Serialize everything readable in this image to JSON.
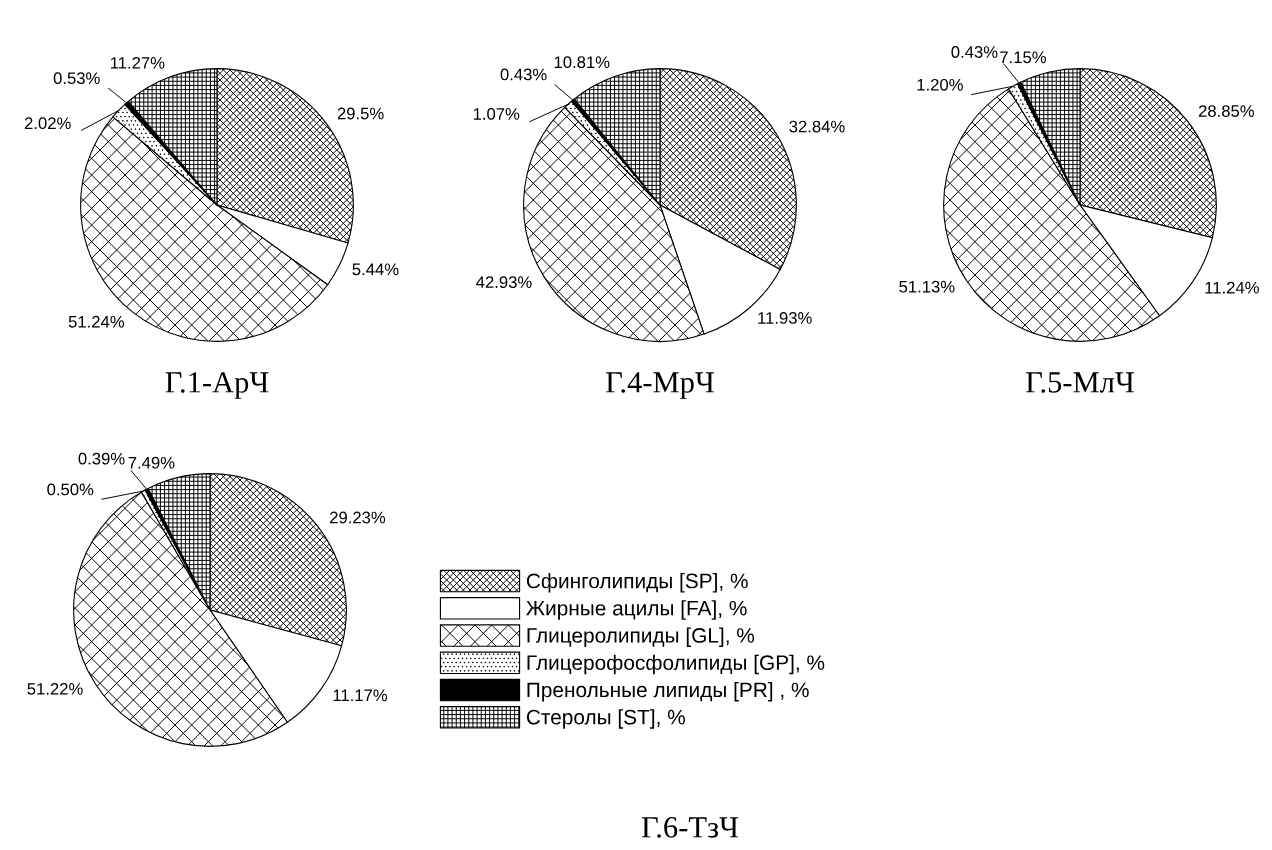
{
  "chart_data": [
    {
      "type": "pie",
      "title": "Г.1-АрЧ",
      "categories": [
        null,
        null,
        null,
        null,
        null,
        null
      ],
      "values": [
        29.5,
        5.44,
        51.24,
        2.02,
        0.53,
        11.27
      ],
      "value_labels": [
        "29.5%",
        "5.44%",
        "51.24%",
        "2.02%",
        "0.53%",
        "11.27%"
      ],
      "colors": [
        "#000000",
        "#000000",
        "#000000",
        "#000000",
        "#000000",
        "#000000"
      ]
    },
    {
      "type": "pie",
      "title": "Г.4-МрЧ",
      "categories": [
        null,
        null,
        null,
        null,
        null,
        null
      ],
      "values": [
        32.84,
        11.93,
        42.93,
        1.07,
        0.43,
        10.81
      ],
      "value_labels": [
        "32.84%",
        "11.93%",
        "42.93%",
        "1.07%",
        "0.43%",
        "10.81%"
      ],
      "colors": [
        "#000000",
        "#000000",
        "#000000",
        "#000000",
        "#000000",
        "#000000"
      ]
    },
    {
      "type": "pie",
      "title": "Г.5-МлЧ",
      "categories": [
        null,
        null,
        null,
        null,
        null,
        null
      ],
      "values": [
        28.85,
        11.24,
        51.13,
        1.2,
        0.43,
        7.15
      ],
      "value_labels": [
        "28.85%",
        "11.24%",
        "51.13%",
        "1.20%",
        "0.43%",
        "7.15%"
      ],
      "colors": [
        "#000000",
        "#000000",
        "#000000",
        "#000000",
        "#000000",
        "#000000"
      ]
    },
    {
      "type": "pie",
      "title": "Г.6-ТзЧ",
      "categories": [
        "Сфинголипиды [SP], %",
        "Жирные ацилы [FA], %",
        "Глицеролипиды [GL], %",
        "Глицерофосфолипиды [GP], %",
        "Пренольные липиды [PR] , %",
        "Стеролы [ST], %"
      ],
      "values": [
        29.23,
        11.17,
        51.22,
        0.5,
        0.39,
        7.49
      ],
      "value_labels": [
        "29.23%",
        "11.17%",
        "51.22%",
        "0.50%",
        "0.39%",
        "7.49%"
      ],
      "colors": [
        "#000000",
        "#000000",
        "#000000",
        "#000000",
        "#000000",
        "#000000"
      ],
      "legend": "right"
    }
  ]
}
